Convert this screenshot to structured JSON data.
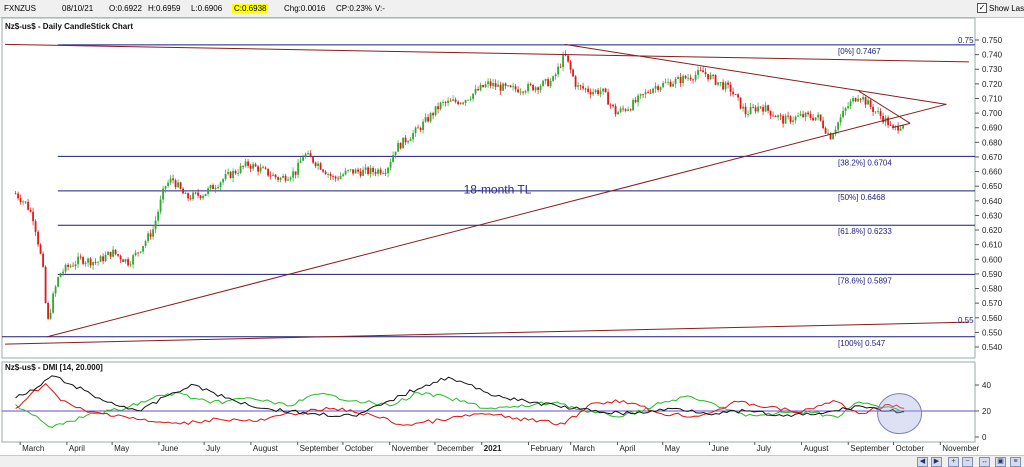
{
  "header": {
    "symbol": "FXNZUS",
    "date": "08/10/21",
    "open": "O:0.6922",
    "high": "H:0.6959",
    "low": "L:0.6906",
    "close": "C:0.6938",
    "change": "Chg:0.0016",
    "change_pct": "CP:0.23%",
    "volume": "V:-",
    "show_last_label": "Show Last",
    "show_last_checked": true
  },
  "colors": {
    "candle_up": "#2eaa2e",
    "candle_down": "#e01818",
    "fib_line": "#1c1c7c",
    "trendline": "#8b1c1c",
    "plus_di": "#22bb22",
    "minus_di": "#dd1111",
    "adx": "#111111",
    "dmi_ref": "#6a4ad8"
  },
  "chart_data": [
    {
      "type": "candlestick",
      "title": "Nz$-us$ - Daily CandleStick Chart",
      "ylim": [
        0.535,
        0.76
      ],
      "y_ticks": [
        "0.750",
        "0.740",
        "0.730",
        "0.720",
        "0.710",
        "0.700",
        "0.690",
        "0.680",
        "0.670",
        "0.660",
        "0.650",
        "0.640",
        "0.630",
        "0.620",
        "0.610",
        "0.600",
        "0.590",
        "0.580",
        "0.570",
        "0.560",
        "0.550",
        "0.540"
      ],
      "x_labels": [
        "March",
        "April",
        "May",
        "June",
        "July",
        "August",
        "September",
        "October",
        "November",
        "December",
        "2021",
        "February",
        "March",
        "April",
        "May",
        "June",
        "July",
        "August",
        "September",
        "October",
        "November"
      ],
      "close_path": [
        [
          "2020-02-27",
          0.645
        ],
        [
          "2020-03-05",
          0.638
        ],
        [
          "2020-03-10",
          0.628
        ],
        [
          "2020-03-16",
          0.595
        ],
        [
          "2020-03-19",
          0.555
        ],
        [
          "2020-03-23",
          0.575
        ],
        [
          "2020-03-27",
          0.59
        ],
        [
          "2020-04-02",
          0.595
        ],
        [
          "2020-04-10",
          0.6
        ],
        [
          "2020-04-21",
          0.598
        ],
        [
          "2020-05-01",
          0.605
        ],
        [
          "2020-05-12",
          0.598
        ],
        [
          "2020-05-18",
          0.605
        ],
        [
          "2020-05-28",
          0.62
        ],
        [
          "2020-06-05",
          0.65
        ],
        [
          "2020-06-10",
          0.655
        ],
        [
          "2020-06-19",
          0.642
        ],
        [
          "2020-07-01",
          0.645
        ],
        [
          "2020-07-15",
          0.656
        ],
        [
          "2020-07-30",
          0.665
        ],
        [
          "2020-08-06",
          0.662
        ],
        [
          "2020-08-20",
          0.655
        ],
        [
          "2020-08-31",
          0.66
        ],
        [
          "2020-09-05",
          0.672
        ],
        [
          "2020-09-15",
          0.665
        ],
        [
          "2020-09-25",
          0.655
        ],
        [
          "2020-10-05",
          0.66
        ],
        [
          "2020-10-20",
          0.66
        ],
        [
          "2020-10-30",
          0.662
        ],
        [
          "2020-11-05",
          0.676
        ],
        [
          "2020-11-20",
          0.689
        ],
        [
          "2020-12-05",
          0.706
        ],
        [
          "2020-12-20",
          0.709
        ],
        [
          "2021-01-05",
          0.72
        ],
        [
          "2021-01-20",
          0.716
        ],
        [
          "2021-02-05",
          0.718
        ],
        [
          "2021-02-17",
          0.722
        ],
        [
          "2021-02-25",
          0.74
        ],
        [
          "2021-03-05",
          0.718
        ],
        [
          "2021-03-15",
          0.715
        ],
        [
          "2021-03-22",
          0.715
        ],
        [
          "2021-03-31",
          0.7
        ],
        [
          "2021-04-10",
          0.705
        ],
        [
          "2021-04-25",
          0.718
        ],
        [
          "2021-05-10",
          0.722
        ],
        [
          "2021-05-28",
          0.728
        ],
        [
          "2021-06-05",
          0.722
        ],
        [
          "2021-06-15",
          0.716
        ],
        [
          "2021-06-25",
          0.7
        ],
        [
          "2021-07-05",
          0.705
        ],
        [
          "2021-07-20",
          0.695
        ],
        [
          "2021-08-02",
          0.698
        ],
        [
          "2021-08-12",
          0.697
        ],
        [
          "2021-08-20",
          0.684
        ],
        [
          "2021-08-31",
          0.704
        ],
        [
          "2021-09-08",
          0.713
        ],
        [
          "2021-09-17",
          0.703
        ],
        [
          "2021-09-27",
          0.694
        ],
        [
          "2021-09-30",
          0.688
        ],
        [
          "2021-10-08",
          0.694
        ]
      ],
      "fibonacci_levels": [
        {
          "label": "[0%] 0.7467",
          "value": 0.7467
        },
        {
          "label": "[38.2%] 0.6704",
          "value": 0.6704
        },
        {
          "label": "[50%] 0.6468",
          "value": 0.6468
        },
        {
          "label": "[61.8%] 0.6233",
          "value": 0.6233
        },
        {
          "label": "[78.6%] 0.5897",
          "value": 0.5897
        },
        {
          "label": "[100%] 0.547",
          "value": 0.547
        }
      ],
      "trendlines": [
        {
          "from": [
            "2020-03-19",
            0.547
          ],
          "to": [
            "2021-11-05",
            0.706
          ]
        },
        {
          "from": [
            "2021-02-25",
            0.747
          ],
          "to": [
            "2021-11-05",
            0.706
          ]
        },
        {
          "from": [
            "2021-09-08",
            0.715
          ],
          "to": [
            "2021-10-12",
            0.693
          ]
        },
        {
          "from": [
            "2021-09-30",
            0.69
          ],
          "to": [
            "2021-10-12",
            0.693
          ]
        },
        {
          "from": [
            "2020-02-20",
            0.747
          ],
          "to": [
            "2021-11-20",
            0.735
          ]
        },
        {
          "from": [
            "2020-02-20",
            0.542
          ],
          "to": [
            "2021-11-20",
            0.557
          ]
        }
      ],
      "right_labels": [
        {
          "text": "0.75",
          "value": 0.75
        },
        {
          "text": "0.55",
          "value": 0.5585
        }
      ],
      "annotations": [
        {
          "text": "18-month TL",
          "at": [
            "2020-12-20",
            0.645
          ]
        }
      ]
    },
    {
      "type": "line",
      "title": "Nz$-us$ - DMI [14, 20.000]",
      "ylim": [
        -5,
        50
      ],
      "y_ticks": [
        "40",
        "20",
        "0"
      ],
      "reference_line": 20,
      "series": [
        {
          "key": "plus_di",
          "points": [
            [
              "2020-02-27",
              25
            ],
            [
              "2020-03-12",
              16
            ],
            [
              "2020-03-20",
              8
            ],
            [
              "2020-04-01",
              12
            ],
            [
              "2020-04-20",
              18
            ],
            [
              "2020-05-10",
              22
            ],
            [
              "2020-05-28",
              30
            ],
            [
              "2020-06-12",
              34
            ],
            [
              "2020-07-05",
              26
            ],
            [
              "2020-08-01",
              30
            ],
            [
              "2020-08-25",
              24
            ],
            [
              "2020-09-15",
              33
            ],
            [
              "2020-10-10",
              28
            ],
            [
              "2020-11-01",
              24
            ],
            [
              "2020-11-20",
              34
            ],
            [
              "2020-12-10",
              30
            ],
            [
              "2021-01-05",
              22
            ],
            [
              "2021-01-25",
              23
            ],
            [
              "2021-02-20",
              27
            ],
            [
              "2021-03-12",
              19
            ],
            [
              "2021-04-05",
              16
            ],
            [
              "2021-04-25",
              24
            ],
            [
              "2021-05-15",
              31
            ],
            [
              "2021-06-05",
              25
            ],
            [
              "2021-06-25",
              16
            ],
            [
              "2021-07-15",
              18
            ],
            [
              "2021-08-05",
              20
            ],
            [
              "2021-08-25",
              15
            ],
            [
              "2021-09-08",
              27
            ],
            [
              "2021-09-25",
              23
            ],
            [
              "2021-10-08",
              19
            ]
          ]
        },
        {
          "key": "minus_di",
          "points": [
            [
              "2020-02-27",
              22
            ],
            [
              "2020-03-08",
              33
            ],
            [
              "2020-03-18",
              41
            ],
            [
              "2020-03-28",
              28
            ],
            [
              "2020-04-15",
              19
            ],
            [
              "2020-05-05",
              17
            ],
            [
              "2020-05-25",
              12
            ],
            [
              "2020-06-15",
              10
            ],
            [
              "2020-07-10",
              14
            ],
            [
              "2020-08-05",
              12
            ],
            [
              "2020-08-28",
              18
            ],
            [
              "2020-09-25",
              22
            ],
            [
              "2020-10-20",
              17
            ],
            [
              "2020-11-10",
              9
            ],
            [
              "2020-12-05",
              13
            ],
            [
              "2021-01-01",
              18
            ],
            [
              "2021-02-01",
              13
            ],
            [
              "2021-02-25",
              10
            ],
            [
              "2021-03-15",
              26
            ],
            [
              "2021-04-05",
              28
            ],
            [
              "2021-04-30",
              18
            ],
            [
              "2021-05-25",
              16
            ],
            [
              "2021-06-20",
              27
            ],
            [
              "2021-07-10",
              23
            ],
            [
              "2021-08-01",
              19
            ],
            [
              "2021-08-22",
              28
            ],
            [
              "2021-09-08",
              18
            ],
            [
              "2021-09-28",
              25
            ],
            [
              "2021-10-08",
              22
            ]
          ]
        },
        {
          "key": "adx",
          "points": [
            [
              "2020-02-27",
              30
            ],
            [
              "2020-03-10",
              36
            ],
            [
              "2020-03-22",
              47
            ],
            [
              "2020-04-05",
              40
            ],
            [
              "2020-04-25",
              28
            ],
            [
              "2020-05-20",
              20
            ],
            [
              "2020-06-10",
              34
            ],
            [
              "2020-06-25",
              40
            ],
            [
              "2020-07-15",
              30
            ],
            [
              "2020-08-10",
              22
            ],
            [
              "2020-09-10",
              18
            ],
            [
              "2020-10-10",
              16
            ],
            [
              "2020-11-01",
              28
            ],
            [
              "2020-11-25",
              40
            ],
            [
              "2020-12-10",
              46
            ],
            [
              "2021-01-05",
              34
            ],
            [
              "2021-01-25",
              28
            ],
            [
              "2021-02-20",
              24
            ],
            [
              "2021-03-15",
              20
            ],
            [
              "2021-04-10",
              18
            ],
            [
              "2021-05-10",
              22
            ],
            [
              "2021-06-05",
              18
            ],
            [
              "2021-06-25",
              20
            ],
            [
              "2021-07-20",
              16
            ],
            [
              "2021-08-15",
              18
            ],
            [
              "2021-09-08",
              24
            ],
            [
              "2021-09-28",
              20
            ],
            [
              "2021-10-08",
              20
            ]
          ]
        }
      ],
      "highlight": {
        "shape": "ellipse",
        "center": [
          "2021-10-05",
          18
        ]
      }
    }
  ]
}
